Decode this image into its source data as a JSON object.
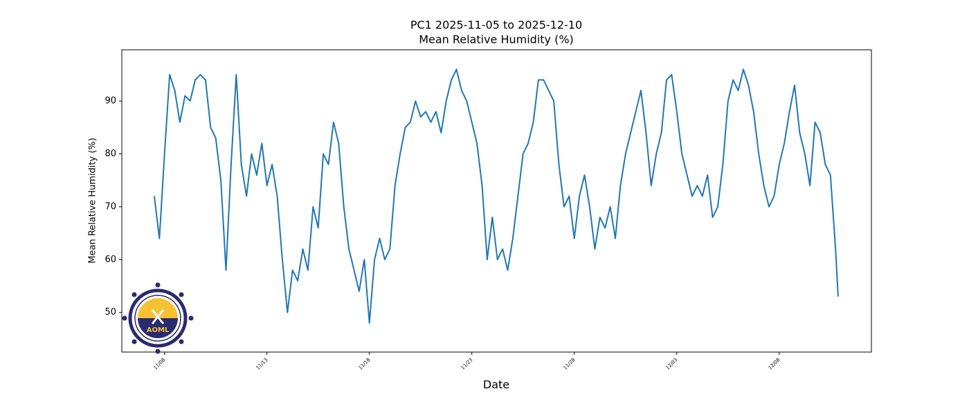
{
  "chart_data": {
    "type": "line",
    "title": "PC1 2025-11-05 to 2025-12-10",
    "subtitle": "Mean Relative Humidity (%)",
    "x_label": "Date",
    "y_label": "Mean Relative Humidity (%)",
    "logo": "AOML",
    "xlim": [
      "2025-11-05T22:00",
      "2025-12-12T12:00"
    ],
    "xticks": [
      {
        "value": "2025-11-08T00:00",
        "label": "11/08"
      },
      {
        "value": "2025-11-13T00:00",
        "label": "11/13"
      },
      {
        "value": "2025-11-18T00:00",
        "label": "11/18"
      },
      {
        "value": "2025-11-23T00:00",
        "label": "11/23"
      },
      {
        "value": "2025-11-28T00:00",
        "label": "11/28"
      },
      {
        "value": "2025-12-03T00:00",
        "label": "12/03"
      },
      {
        "value": "2025-12-08T00:00",
        "label": "12/08"
      }
    ],
    "ylim": [
      42.5,
      99.7
    ],
    "yticks": [
      50,
      60,
      70,
      80,
      90
    ],
    "x": [
      "2025-11-07T12:00",
      "2025-11-07T18:00",
      "2025-11-08T00:00",
      "2025-11-08T06:00",
      "2025-11-08T12:00",
      "2025-11-08T18:00",
      "2025-11-09T00:00",
      "2025-11-09T06:00",
      "2025-11-09T12:00",
      "2025-11-09T18:00",
      "2025-11-10T00:00",
      "2025-11-10T06:00",
      "2025-11-10T12:00",
      "2025-11-10T18:00",
      "2025-11-11T00:00",
      "2025-11-11T06:00",
      "2025-11-11T12:00",
      "2025-11-11T18:00",
      "2025-11-12T00:00",
      "2025-11-12T06:00",
      "2025-11-12T12:00",
      "2025-11-12T18:00",
      "2025-11-13T00:00",
      "2025-11-13T06:00",
      "2025-11-13T12:00",
      "2025-11-13T18:00",
      "2025-11-14T00:00",
      "2025-11-14T06:00",
      "2025-11-14T12:00",
      "2025-11-14T18:00",
      "2025-11-15T00:00",
      "2025-11-15T06:00",
      "2025-11-15T12:00",
      "2025-11-15T18:00",
      "2025-11-16T00:00",
      "2025-11-16T06:00",
      "2025-11-16T12:00",
      "2025-11-16T18:00",
      "2025-11-17T00:00",
      "2025-11-17T06:00",
      "2025-11-17T12:00",
      "2025-11-17T18:00",
      "2025-11-18T00:00",
      "2025-11-18T06:00",
      "2025-11-18T12:00",
      "2025-11-18T18:00",
      "2025-11-19T00:00",
      "2025-11-19T06:00",
      "2025-11-19T12:00",
      "2025-11-19T18:00",
      "2025-11-20T00:00",
      "2025-11-20T06:00",
      "2025-11-20T12:00",
      "2025-11-20T18:00",
      "2025-11-21T00:00",
      "2025-11-21T06:00",
      "2025-11-21T12:00",
      "2025-11-21T18:00",
      "2025-11-22T00:00",
      "2025-11-22T06:00",
      "2025-11-22T12:00",
      "2025-11-22T18:00",
      "2025-11-23T00:00",
      "2025-11-23T06:00",
      "2025-11-23T12:00",
      "2025-11-23T18:00",
      "2025-11-24T00:00",
      "2025-11-24T06:00",
      "2025-11-24T12:00",
      "2025-11-24T18:00",
      "2025-11-25T00:00",
      "2025-11-25T06:00",
      "2025-11-25T12:00",
      "2025-11-25T18:00",
      "2025-11-26T00:00",
      "2025-11-26T06:00",
      "2025-11-26T12:00",
      "2025-11-26T18:00",
      "2025-11-27T00:00",
      "2025-11-27T06:00",
      "2025-11-27T12:00",
      "2025-11-27T18:00",
      "2025-11-28T00:00",
      "2025-11-28T06:00",
      "2025-11-28T12:00",
      "2025-11-28T18:00",
      "2025-11-29T00:00",
      "2025-11-29T06:00",
      "2025-11-29T12:00",
      "2025-11-29T18:00",
      "2025-11-30T00:00",
      "2025-11-30T06:00",
      "2025-11-30T12:00",
      "2025-11-30T18:00",
      "2025-12-01T00:00",
      "2025-12-01T06:00",
      "2025-12-01T12:00",
      "2025-12-01T18:00",
      "2025-12-02T00:00",
      "2025-12-02T06:00",
      "2025-12-02T12:00",
      "2025-12-02T18:00",
      "2025-12-03T00:00",
      "2025-12-03T06:00",
      "2025-12-03T12:00",
      "2025-12-03T18:00",
      "2025-12-04T00:00",
      "2025-12-04T06:00",
      "2025-12-04T12:00",
      "2025-12-04T18:00",
      "2025-12-05T00:00",
      "2025-12-05T06:00",
      "2025-12-05T12:00",
      "2025-12-05T18:00",
      "2025-12-06T00:00",
      "2025-12-06T06:00",
      "2025-12-06T12:00",
      "2025-12-06T18:00",
      "2025-12-07T00:00",
      "2025-12-07T06:00",
      "2025-12-07T12:00",
      "2025-12-07T18:00",
      "2025-12-08T00:00",
      "2025-12-08T06:00",
      "2025-12-08T12:00",
      "2025-12-08T18:00",
      "2025-12-09T00:00",
      "2025-12-09T06:00",
      "2025-12-09T12:00",
      "2025-12-09T18:00",
      "2025-12-10T00:00",
      "2025-12-10T06:00",
      "2025-12-10T12:00",
      "2025-12-10T18:00",
      "2025-12-10T21:00"
    ],
    "series": [
      {
        "name": "Mean Relative Humidity",
        "color": "#1f77b4",
        "values": [
          72,
          64,
          80,
          95,
          92,
          86,
          91,
          90,
          94,
          95,
          94,
          85,
          83,
          75,
          58,
          78,
          95,
          78,
          72,
          80,
          76,
          82,
          74,
          78,
          72,
          60,
          50,
          58,
          56,
          62,
          58,
          70,
          66,
          80,
          78,
          86,
          82,
          70,
          62,
          58,
          54,
          60,
          48,
          60,
          64,
          60,
          62,
          74,
          80,
          85,
          86,
          90,
          87,
          88,
          86,
          88,
          84,
          90,
          94,
          96,
          92,
          90,
          86,
          82,
          74,
          60,
          68,
          60,
          62,
          58,
          64,
          72,
          80,
          82,
          86,
          94,
          94,
          92,
          90,
          78,
          70,
          72,
          64,
          72,
          76,
          70,
          62,
          68,
          66,
          70,
          64,
          74,
          80,
          84,
          88,
          92,
          84,
          74,
          80,
          84,
          94,
          95,
          88,
          80,
          76,
          72,
          74,
          72,
          76,
          68,
          70,
          78,
          90,
          94,
          92,
          96,
          93,
          88,
          80,
          74,
          70,
          72,
          78,
          82,
          88,
          93,
          84,
          80,
          74,
          86,
          84,
          78,
          76,
          62,
          53
        ]
      }
    ]
  }
}
